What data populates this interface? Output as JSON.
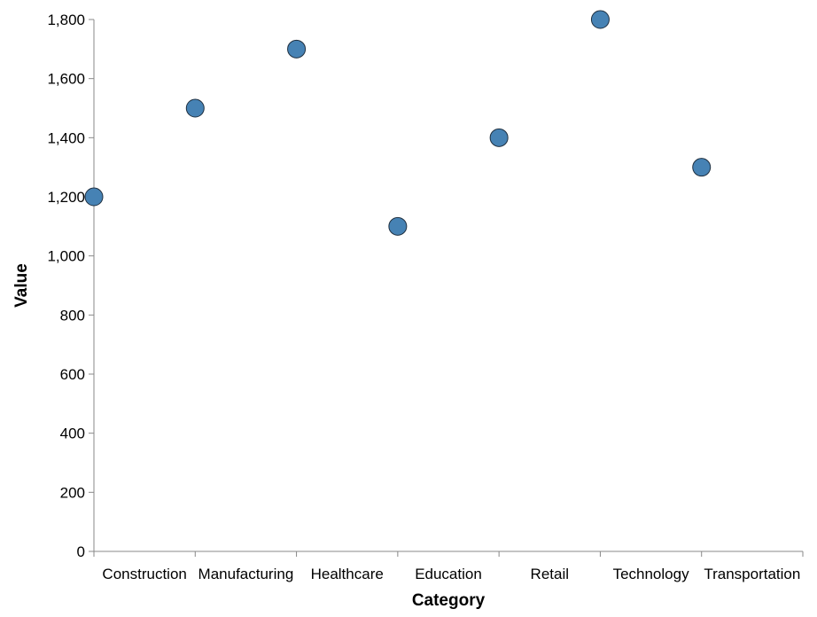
{
  "chart_data": {
    "type": "scatter",
    "xlabel": "Category",
    "ylabel": "Value",
    "categories": [
      "Construction",
      "Manufacturing",
      "Healthcare",
      "Education",
      "Retail",
      "Technology",
      "Transportation"
    ],
    "ylim": [
      0,
      1800
    ],
    "yticks": [
      0,
      200,
      400,
      600,
      800,
      1000,
      1200,
      1400,
      1600,
      1800
    ],
    "ytick_labels": [
      "0",
      "200",
      "400",
      "600",
      "800",
      "1,000",
      "1,200",
      "1,400",
      "1,600",
      "1,800"
    ],
    "grid": false,
    "points": [
      {
        "x": "Construction",
        "y": 1200
      },
      {
        "x": "Manufacturing",
        "y": 1500
      },
      {
        "x": "Healthcare",
        "y": 1700
      },
      {
        "x": "Education",
        "y": 1100
      },
      {
        "x": "Retail",
        "y": 1400
      },
      {
        "x": "Technology",
        "y": 1800
      },
      {
        "x": "Transportation",
        "y": 1300
      }
    ],
    "color": "#4682b4"
  }
}
